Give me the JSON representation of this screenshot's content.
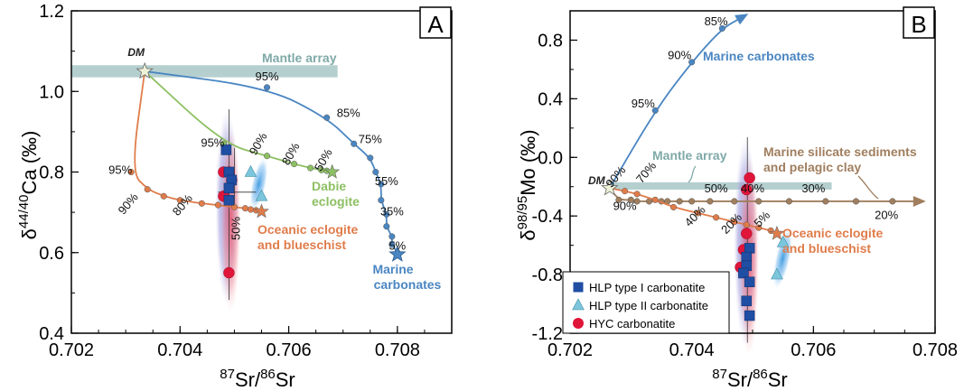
{
  "chart_data": [
    {
      "type": "scatter",
      "panel_label": "A",
      "ylabel_main": "δ",
      "ylabel_sup": "44/40",
      "ylabel_tail": "Ca (‰)",
      "xlabel_sup1": "87",
      "xlabel_mid": "Sr/",
      "xlabel_sup2": "86",
      "xlabel_tail": "Sr",
      "xlim": [
        0.702,
        0.709
      ],
      "ylim": [
        0.4,
        1.2
      ],
      "xticks": [
        "0.702",
        "0.704",
        "0.706",
        "0.708"
      ],
      "yticks": [
        "0.4",
        "0.6",
        "0.8",
        "1.0",
        "1.2"
      ],
      "reference_labels": {
        "dm": "DM",
        "mantle_array": "Mantle array",
        "dabie": [
          "Dabie",
          "eclogite"
        ],
        "oceanic": [
          "Oceanic eclogite",
          "and blueschist"
        ],
        "marine": [
          "Marine",
          "carbonates"
        ]
      },
      "mantle_array": {
        "x": [
          0.702,
          0.7069
        ],
        "y": [
          1.035,
          1.065
        ]
      },
      "dm": {
        "x": 0.70335,
        "y": 1.05
      },
      "series": [
        {
          "curve": "marine",
          "color": "#4a86c2",
          "x": [
            0.70335,
            0.7056,
            0.7067,
            0.7072,
            0.7075,
            0.7076,
            0.7077,
            0.7077,
            0.7078,
            0.7078,
            0.7079,
            0.7079,
            0.708
          ],
          "y": [
            1.05,
            1.01,
            0.935,
            0.87,
            0.835,
            0.8,
            0.77,
            0.73,
            0.695,
            0.665,
            0.64,
            0.62,
            0.6
          ]
        },
        {
          "curve": "dabie",
          "color": "#8dc063",
          "x": [
            0.70335,
            0.7048,
            0.7056,
            0.7061,
            0.7064,
            0.7066,
            0.7067,
            0.7068
          ],
          "y": [
            1.05,
            0.87,
            0.84,
            0.82,
            0.81,
            0.805,
            0.803,
            0.8
          ]
        },
        {
          "curve": "oceanic",
          "color": "#e07c4a",
          "x": [
            0.70335,
            0.7031,
            0.7034,
            0.7037,
            0.704,
            0.7044,
            0.7047,
            0.705,
            0.7052,
            0.7053,
            0.7054,
            0.7055
          ],
          "y": [
            1.05,
            0.8,
            0.757,
            0.74,
            0.73,
            0.722,
            0.718,
            0.713,
            0.71,
            0.707,
            0.705,
            0.702
          ]
        }
      ],
      "curve_labels": [
        {
          "text": "95%",
          "x": 0.7056,
          "y": 1.028
        },
        {
          "text": "85%",
          "x": 0.7071,
          "y": 0.937
        },
        {
          "text": "75%",
          "x": 0.7075,
          "y": 0.872
        },
        {
          "text": "55%",
          "x": 0.7078,
          "y": 0.768
        },
        {
          "text": "35%",
          "x": 0.7079,
          "y": 0.692
        },
        {
          "text": "5%",
          "x": 0.708,
          "y": 0.607
        },
        {
          "text": "95%",
          "x": 0.7046,
          "y": 0.863
        },
        {
          "text": "90%",
          "x": 0.7055,
          "y": 0.865,
          "rot": -60
        },
        {
          "text": "80%",
          "x": 0.7061,
          "y": 0.84,
          "rot": -60
        },
        {
          "text": "50%",
          "x": 0.7067,
          "y": 0.825,
          "rot": -60
        },
        {
          "text": "95%",
          "x": 0.7029,
          "y": 0.795
        },
        {
          "text": "90%",
          "x": 0.7031,
          "y": 0.715,
          "rot": -50
        },
        {
          "text": "80%",
          "x": 0.7041,
          "y": 0.712,
          "rot": -50
        },
        {
          "text": "50%",
          "x": 0.7051,
          "y": 0.66,
          "rot": -90
        }
      ],
      "samples": {
        "hlp_type_I": {
          "x": [
            0.70485,
            0.7049,
            0.70495,
            0.7049,
            0.7049
          ],
          "y": [
            0.855,
            0.8,
            0.78,
            0.76,
            0.73
          ]
        },
        "hlp_type_II": {
          "x": [
            0.7053,
            0.7055
          ],
          "y": [
            0.8,
            0.74
          ]
        },
        "hyc": {
          "x": [
            0.7048,
            0.7049,
            0.70495,
            0.7048,
            0.7049
          ],
          "y": [
            0.8,
            0.8,
            0.78,
            0.74,
            0.55
          ]
        }
      }
    },
    {
      "type": "scatter",
      "panel_label": "B",
      "ylabel_main": "δ",
      "ylabel_sup": "98/95",
      "ylabel_tail": "Mo (‰)",
      "xlabel_sup1": "87",
      "xlabel_mid": "Sr/",
      "xlabel_sup2": "86",
      "xlabel_tail": "Sr",
      "xlim": [
        0.702,
        0.708
      ],
      "ylim": [
        -1.2,
        1.0
      ],
      "xticks": [
        "0.702",
        "0.704",
        "0.706",
        "0.708"
      ],
      "yticks": [
        "-1.2",
        "-0.8",
        "-0.4",
        "0.0",
        "0.4",
        "0.8"
      ],
      "reference_labels": {
        "dm": "DM",
        "mantle_array": "Mantle array",
        "marine": "Marine carbonates",
        "silicate": [
          "Marine silicate sediments",
          "and pelagic clay"
        ],
        "oceanic": [
          "Oceanic eclogite",
          "and blueschist"
        ]
      },
      "mantle_array": {
        "x": [
          0.7026,
          0.7063
        ],
        "y": [
          -0.22,
          -0.17
        ]
      },
      "dm": {
        "x": 0.70265,
        "y": -0.21
      },
      "series": [
        {
          "curve": "marine",
          "color": "#4a86c2",
          "x": [
            0.70265,
            0.7034,
            0.704,
            0.7045,
            0.7048
          ],
          "y": [
            -0.21,
            0.32,
            0.65,
            0.88,
            0.95
          ]
        },
        {
          "curve": "silicate",
          "color": "#a07e5e",
          "x": [
            0.70265,
            0.7028,
            0.703,
            0.7031,
            0.7033,
            0.7035,
            0.7036,
            0.7038,
            0.704,
            0.7043,
            0.7047,
            0.7051,
            0.7056,
            0.7062,
            0.7067,
            0.7073,
            0.7077
          ],
          "y": [
            -0.21,
            -0.29,
            -0.29,
            -0.3,
            -0.3,
            -0.3,
            -0.3,
            -0.3,
            -0.3,
            -0.3,
            -0.3,
            -0.3,
            -0.3,
            -0.3,
            -0.3,
            -0.3,
            -0.3
          ]
        },
        {
          "curve": "oceanic",
          "color": "#e07c4a",
          "x": [
            0.70265,
            0.7029,
            0.7031,
            0.7034,
            0.7037,
            0.7041,
            0.7044,
            0.7047,
            0.7049,
            0.7051,
            0.7053,
            0.7054
          ],
          "y": [
            -0.21,
            -0.23,
            -0.25,
            -0.29,
            -0.34,
            -0.38,
            -0.41,
            -0.44,
            -0.46,
            -0.48,
            -0.5,
            -0.52
          ]
        }
      ],
      "curve_labels": [
        {
          "text": "85%",
          "x": 0.7044,
          "y": 0.9
        },
        {
          "text": "90%",
          "x": 0.7038,
          "y": 0.67
        },
        {
          "text": "95%",
          "x": 0.7032,
          "y": 0.34
        },
        {
          "text": "90%",
          "x": 0.7028,
          "y": -0.15,
          "rot": -50
        },
        {
          "text": "70%",
          "x": 0.7033,
          "y": -0.12,
          "rot": -50
        },
        {
          "text": "50%",
          "x": 0.7044,
          "y": -0.24
        },
        {
          "text": "40%",
          "x": 0.705,
          "y": -0.24
        },
        {
          "text": "30%",
          "x": 0.706,
          "y": -0.24
        },
        {
          "text": "20%",
          "x": 0.7072,
          "y": -0.42
        },
        {
          "text": "90%",
          "x": 0.7029,
          "y": -0.36
        },
        {
          "text": "40%",
          "x": 0.7041,
          "y": -0.42,
          "rot": -45
        },
        {
          "text": "20%",
          "x": 0.7047,
          "y": -0.47,
          "rot": -45
        },
        {
          "text": "5%",
          "x": 0.7052,
          "y": -0.44,
          "rot": -45
        }
      ],
      "samples": {
        "hlp_type_I": {
          "x": [
            0.70495,
            0.7049,
            0.7049,
            0.70485,
            0.70495,
            0.7049,
            0.70495
          ],
          "y": [
            -0.62,
            -0.68,
            -0.74,
            -0.79,
            -0.85,
            -0.98,
            -1.08
          ]
        },
        "hlp_type_II": {
          "x": [
            0.7055,
            0.7054
          ],
          "y": [
            -0.58,
            -0.8
          ]
        },
        "hyc": {
          "x": [
            0.70495,
            0.7049,
            0.7049,
            0.70485,
            0.7048
          ],
          "y": [
            -0.14,
            -0.22,
            -0.52,
            -0.63,
            -0.75
          ]
        }
      },
      "legend": [
        {
          "key": "hlp_type_I",
          "label": "HLP type I carbonatite",
          "marker": "square",
          "color": "#1f4ea3"
        },
        {
          "key": "hlp_type_II",
          "label": "HLP type II carbonatite",
          "marker": "triangle",
          "color": "#7cc6dc"
        },
        {
          "key": "hyc",
          "label": "HYC carbonatite",
          "marker": "circle",
          "color": "#e0153a"
        }
      ]
    }
  ]
}
